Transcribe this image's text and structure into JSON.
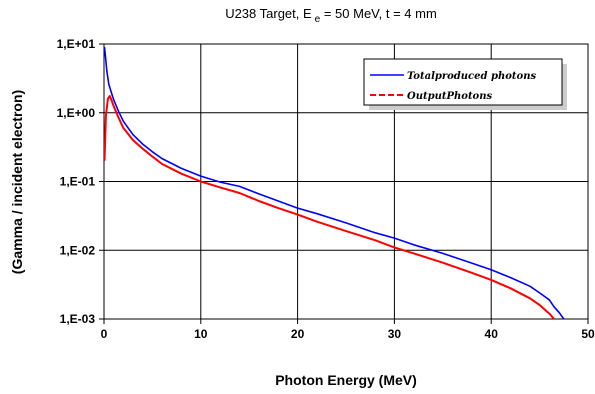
{
  "chart_data": {
    "type": "line",
    "title_main": "U238 Target, E",
    "title_sub": "e",
    "title_rest": " = 50 MeV, t = 4 mm",
    "xlabel": "Photon Energy  (MeV)",
    "ylabel": "(Gamma / incident electron)",
    "xlim": [
      0,
      50
    ],
    "ylim": [
      0.001,
      10
    ],
    "y_scale": "log",
    "grid": true,
    "x_ticks": [
      0,
      10,
      20,
      30,
      40,
      50
    ],
    "x_tick_labels": [
      "0",
      "10",
      "20",
      "30",
      "40",
      "50"
    ],
    "y_ticks": [
      10,
      1,
      0.1,
      0.01,
      0.001
    ],
    "y_tick_labels": [
      "1,E+01",
      "1,E+00",
      "1,E-01",
      "1,E-02",
      "1,E-03"
    ],
    "legend_position": "top-right",
    "series": [
      {
        "name": "Totalproduced photons",
        "color": "#0000ff",
        "x": [
          0.05,
          0.15,
          0.3,
          0.5,
          0.8,
          1,
          1.5,
          2,
          3,
          4,
          5,
          6,
          8,
          10,
          12,
          14,
          16,
          18,
          20,
          22,
          25,
          28,
          30,
          32,
          35,
          38,
          40,
          42,
          44,
          45,
          46,
          46.5,
          47,
          47.5
        ],
        "y": [
          9.0,
          6.5,
          4.0,
          2.6,
          1.9,
          1.55,
          1.05,
          0.75,
          0.48,
          0.35,
          0.27,
          0.215,
          0.155,
          0.12,
          0.098,
          0.085,
          0.066,
          0.052,
          0.041,
          0.034,
          0.025,
          0.018,
          0.015,
          0.012,
          0.009,
          0.0065,
          0.0052,
          0.004,
          0.003,
          0.0024,
          0.0019,
          0.0015,
          0.00125,
          0.001
        ]
      },
      {
        "name": "OutputPhotons",
        "color": "#ff0000",
        "x": [
          0.05,
          0.2,
          0.4,
          0.6,
          0.8,
          1,
          1.5,
          2,
          3,
          4,
          5,
          6,
          8,
          10,
          12,
          14,
          16,
          18,
          20,
          22,
          25,
          28,
          30,
          32,
          35,
          38,
          40,
          42,
          44,
          45,
          46,
          46.5
        ],
        "y": [
          0.2,
          0.9,
          1.6,
          1.75,
          1.5,
          1.25,
          0.85,
          0.6,
          0.4,
          0.3,
          0.23,
          0.18,
          0.13,
          0.1,
          0.082,
          0.068,
          0.052,
          0.041,
          0.033,
          0.026,
          0.019,
          0.014,
          0.011,
          0.009,
          0.0066,
          0.0047,
          0.0037,
          0.0028,
          0.002,
          0.0016,
          0.0012,
          0.001
        ]
      }
    ]
  }
}
